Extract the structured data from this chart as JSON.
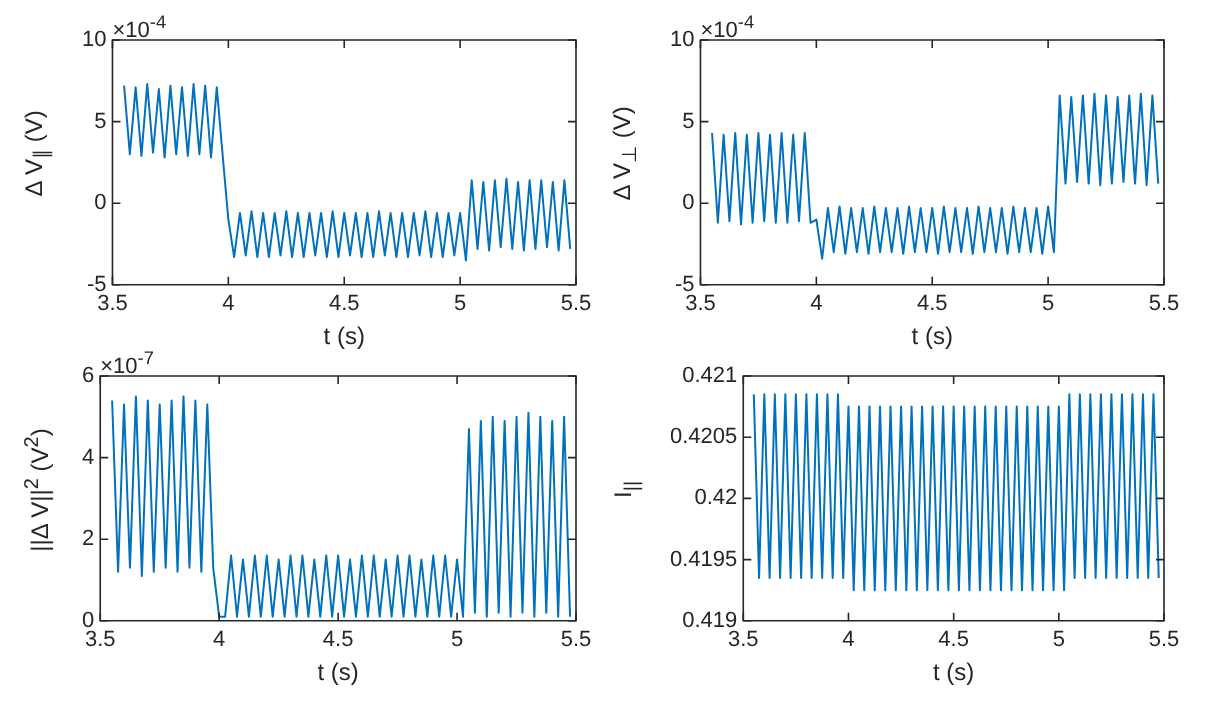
{
  "chart_data": [
    {
      "type": "line",
      "xlabel": "t (s)",
      "ylabel": "Δ V$_{∥}$ (V)",
      "annotations": [
        "×10$^{-4}$"
      ],
      "marker": "none",
      "x": [
        3.55,
        3.575,
        3.6,
        3.625,
        3.65,
        3.675,
        3.7,
        3.725,
        3.75,
        3.775,
        3.8,
        3.825,
        3.85,
        3.875,
        3.9,
        3.925,
        3.95,
        3.975,
        4.0,
        4.025,
        4.05,
        4.075,
        4.1,
        4.125,
        4.15,
        4.175,
        4.2,
        4.225,
        4.25,
        4.275,
        4.3,
        4.325,
        4.35,
        4.375,
        4.4,
        4.425,
        4.45,
        4.475,
        4.5,
        4.525,
        4.55,
        4.575,
        4.6,
        4.625,
        4.65,
        4.675,
        4.7,
        4.725,
        4.75,
        4.775,
        4.8,
        4.825,
        4.85,
        4.875,
        4.9,
        4.925,
        4.95,
        4.975,
        5.0,
        5.025,
        5.05,
        5.075,
        5.1,
        5.125,
        5.15,
        5.175,
        5.2,
        5.225,
        5.25,
        5.275,
        5.3,
        5.325,
        5.35,
        5.375,
        5.4,
        5.425,
        5.45,
        5.475
      ],
      "series": [
        {
          "color": "#0072bd",
          "values": [
            7.2,
            3.0,
            7.1,
            2.9,
            7.3,
            3.1,
            7.0,
            2.8,
            7.2,
            3.0,
            7.1,
            2.9,
            7.3,
            3.0,
            7.2,
            2.8,
            7.1,
            3.0,
            -1.0,
            -3.3,
            -0.6,
            -3.2,
            -0.5,
            -3.3,
            -0.6,
            -3.3,
            -0.6,
            -3.2,
            -0.5,
            -3.3,
            -0.6,
            -3.3,
            -0.6,
            -3.2,
            -0.6,
            -3.3,
            -0.5,
            -3.3,
            -0.6,
            -3.2,
            -0.6,
            -3.3,
            -0.6,
            -3.3,
            -0.5,
            -3.2,
            -0.6,
            -3.3,
            -0.6,
            -3.3,
            -0.6,
            -3.2,
            -0.5,
            -3.3,
            -0.6,
            -3.3,
            -0.6,
            -3.2,
            -0.6,
            -3.5,
            1.4,
            -2.8,
            1.3,
            -2.9,
            1.4,
            -2.7,
            1.5,
            -2.8,
            1.3,
            -2.9,
            1.4,
            -2.8,
            1.4,
            -2.7,
            1.3,
            -2.9,
            1.4,
            -2.8
          ]
        }
      ],
      "xlim": [
        3.5,
        5.5
      ],
      "xticks": [
        3.5,
        4,
        4.5,
        5,
        5.5
      ],
      "ylim": [
        -5,
        10
      ],
      "yticks": [
        -5,
        0,
        5,
        10
      ]
    },
    {
      "type": "line",
      "xlabel": "t (s)",
      "ylabel": "Δ V$_{⊥}$ (V)",
      "annotations": [
        "×10$^{-4}$"
      ],
      "marker": "none",
      "x": [
        3.55,
        3.575,
        3.6,
        3.625,
        3.65,
        3.675,
        3.7,
        3.725,
        3.75,
        3.775,
        3.8,
        3.825,
        3.85,
        3.875,
        3.9,
        3.925,
        3.95,
        3.975,
        4.0,
        4.025,
        4.05,
        4.075,
        4.1,
        4.125,
        4.15,
        4.175,
        4.2,
        4.225,
        4.25,
        4.275,
        4.3,
        4.325,
        4.35,
        4.375,
        4.4,
        4.425,
        4.45,
        4.475,
        4.5,
        4.525,
        4.55,
        4.575,
        4.6,
        4.625,
        4.65,
        4.675,
        4.7,
        4.725,
        4.75,
        4.775,
        4.8,
        4.825,
        4.85,
        4.875,
        4.9,
        4.925,
        4.95,
        4.975,
        5.0,
        5.025,
        5.05,
        5.075,
        5.1,
        5.125,
        5.15,
        5.175,
        5.2,
        5.225,
        5.25,
        5.275,
        5.3,
        5.325,
        5.35,
        5.375,
        5.4,
        5.425,
        5.45,
        5.475
      ],
      "series": [
        {
          "color": "#0072bd",
          "values": [
            4.3,
            -1.2,
            4.2,
            -1.1,
            4.3,
            -1.3,
            4.2,
            -1.2,
            4.3,
            -1.1,
            4.2,
            -1.2,
            4.3,
            -1.2,
            4.2,
            -1.1,
            4.3,
            -1.2,
            -1.0,
            -3.4,
            -0.3,
            -3.0,
            -0.2,
            -3.1,
            -0.3,
            -3.0,
            -0.3,
            -3.1,
            -0.2,
            -3.0,
            -0.3,
            -3.0,
            -0.3,
            -3.1,
            -0.2,
            -3.0,
            -0.3,
            -3.0,
            -0.3,
            -3.1,
            -0.2,
            -3.0,
            -0.3,
            -3.0,
            -0.3,
            -3.1,
            -0.2,
            -3.0,
            -0.3,
            -3.0,
            -0.3,
            -3.1,
            -0.2,
            -3.0,
            -0.3,
            -3.0,
            -0.3,
            -3.1,
            -0.2,
            -3.0,
            6.6,
            1.2,
            6.5,
            1.3,
            6.6,
            1.2,
            6.7,
            1.1,
            6.6,
            1.2,
            6.5,
            1.3,
            6.6,
            1.2,
            6.7,
            1.1,
            6.6,
            1.2
          ]
        }
      ],
      "xlim": [
        3.5,
        5.5
      ],
      "xticks": [
        3.5,
        4,
        4.5,
        5,
        5.5
      ],
      "ylim": [
        -5,
        10
      ],
      "yticks": [
        -5,
        0,
        5,
        10
      ]
    },
    {
      "type": "line",
      "xlabel": "t (s)",
      "ylabel": "||Δ V||$^{2}$ (V$^{2}$)",
      "annotations": [
        "×10$^{-7}$"
      ],
      "marker": "none",
      "x": [
        3.55,
        3.575,
        3.6,
        3.625,
        3.65,
        3.675,
        3.7,
        3.725,
        3.75,
        3.775,
        3.8,
        3.825,
        3.85,
        3.875,
        3.9,
        3.925,
        3.95,
        3.975,
        4.0,
        4.025,
        4.05,
        4.075,
        4.1,
        4.125,
        4.15,
        4.175,
        4.2,
        4.225,
        4.25,
        4.275,
        4.3,
        4.325,
        4.35,
        4.375,
        4.4,
        4.425,
        4.45,
        4.475,
        4.5,
        4.525,
        4.55,
        4.575,
        4.6,
        4.625,
        4.65,
        4.675,
        4.7,
        4.725,
        4.75,
        4.775,
        4.8,
        4.825,
        4.85,
        4.875,
        4.9,
        4.925,
        4.95,
        4.975,
        5.0,
        5.025,
        5.05,
        5.075,
        5.1,
        5.125,
        5.15,
        5.175,
        5.2,
        5.225,
        5.25,
        5.275,
        5.3,
        5.325,
        5.35,
        5.375,
        5.4,
        5.425,
        5.45,
        5.475
      ],
      "series": [
        {
          "color": "#0072bd",
          "values": [
            5.4,
            1.2,
            5.3,
            1.3,
            5.5,
            1.1,
            5.4,
            1.2,
            5.3,
            1.3,
            5.4,
            1.2,
            5.5,
            1.3,
            5.4,
            1.2,
            5.3,
            1.3,
            0.1,
            0.1,
            1.6,
            0.1,
            1.5,
            0.1,
            1.6,
            0.1,
            1.6,
            0.1,
            1.5,
            0.1,
            1.6,
            0.1,
            1.6,
            0.1,
            1.5,
            0.1,
            1.6,
            0.1,
            1.6,
            0.1,
            1.5,
            0.1,
            1.6,
            0.1,
            1.6,
            0.1,
            1.5,
            0.1,
            1.6,
            0.1,
            1.6,
            0.1,
            1.5,
            0.1,
            1.6,
            0.1,
            1.6,
            0.1,
            1.5,
            0.1,
            4.7,
            0.2,
            4.9,
            0.1,
            5.0,
            0.2,
            4.9,
            0.1,
            5.0,
            0.2,
            5.1,
            0.1,
            5.0,
            0.2,
            4.9,
            0.1,
            5.0,
            0.1
          ]
        }
      ],
      "xlim": [
        3.5,
        5.5
      ],
      "xticks": [
        3.5,
        4,
        4.5,
        5,
        5.5
      ],
      "ylim": [
        0,
        6
      ],
      "yticks": [
        0,
        2,
        4,
        6
      ]
    },
    {
      "type": "line",
      "xlabel": "t (s)",
      "ylabel": "I$_{||}$",
      "marker": "none",
      "x": [
        3.55,
        3.575,
        3.6,
        3.625,
        3.65,
        3.675,
        3.7,
        3.725,
        3.75,
        3.775,
        3.8,
        3.825,
        3.85,
        3.875,
        3.9,
        3.925,
        3.95,
        3.975,
        4.0,
        4.025,
        4.05,
        4.075,
        4.1,
        4.125,
        4.15,
        4.175,
        4.2,
        4.225,
        4.25,
        4.275,
        4.3,
        4.325,
        4.35,
        4.375,
        4.4,
        4.425,
        4.45,
        4.475,
        4.5,
        4.525,
        4.55,
        4.575,
        4.6,
        4.625,
        4.65,
        4.675,
        4.7,
        4.725,
        4.75,
        4.775,
        4.8,
        4.825,
        4.85,
        4.875,
        4.9,
        4.925,
        4.95,
        4.975,
        5.0,
        5.025,
        5.05,
        5.075,
        5.1,
        5.125,
        5.15,
        5.175,
        5.2,
        5.225,
        5.25,
        5.275,
        5.3,
        5.325,
        5.35,
        5.375,
        5.4,
        5.425,
        5.45,
        5.475
      ],
      "series": [
        {
          "color": "#0072bd",
          "values": [
            0.42085,
            0.41935,
            0.42085,
            0.41935,
            0.42085,
            0.41935,
            0.42085,
            0.41935,
            0.42085,
            0.41935,
            0.42085,
            0.41935,
            0.42085,
            0.41935,
            0.42085,
            0.41935,
            0.42085,
            0.41935,
            0.42075,
            0.41925,
            0.42075,
            0.41925,
            0.42075,
            0.41925,
            0.42075,
            0.41925,
            0.42075,
            0.41925,
            0.42075,
            0.41925,
            0.42075,
            0.41925,
            0.42075,
            0.41925,
            0.42075,
            0.41925,
            0.42075,
            0.41925,
            0.42075,
            0.41925,
            0.42075,
            0.41925,
            0.42075,
            0.41925,
            0.42075,
            0.41925,
            0.42075,
            0.41925,
            0.42075,
            0.41925,
            0.42075,
            0.41925,
            0.42075,
            0.41925,
            0.42075,
            0.41925,
            0.42075,
            0.41925,
            0.42075,
            0.41925,
            0.42085,
            0.41935,
            0.42085,
            0.41935,
            0.42085,
            0.41935,
            0.42085,
            0.41935,
            0.42085,
            0.41935,
            0.42085,
            0.41935,
            0.42085,
            0.41935,
            0.42085,
            0.41935,
            0.42085,
            0.41935
          ]
        }
      ],
      "xlim": [
        3.5,
        5.5
      ],
      "xticks": [
        3.5,
        4,
        4.5,
        5,
        5.5
      ],
      "ylim": [
        0.419,
        0.421
      ],
      "yticks": [
        0.419,
        0.4195,
        0.42,
        0.4205,
        0.421
      ]
    }
  ]
}
